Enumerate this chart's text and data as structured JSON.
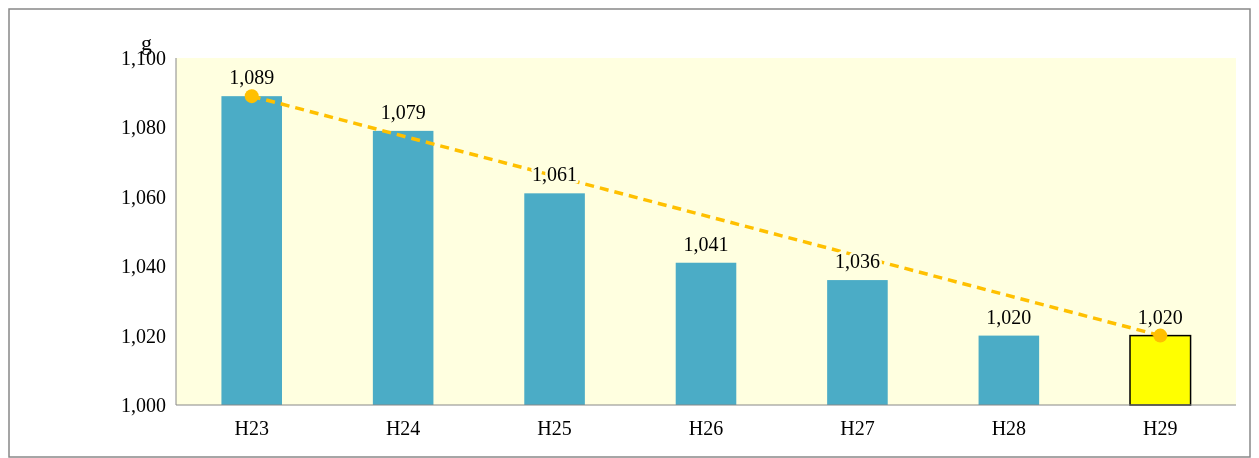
{
  "chart_data": {
    "type": "bar",
    "ylabel": "g",
    "categories": [
      "H23",
      "H24",
      "H25",
      "H26",
      "H27",
      "H28",
      "H29"
    ],
    "ylim": [
      1000,
      1100
    ],
    "yticks": [
      {
        "value": 1000,
        "label": "1,000"
      },
      {
        "value": 1020,
        "label": "1,020"
      },
      {
        "value": 1040,
        "label": "1,040"
      },
      {
        "value": 1060,
        "label": "1,060"
      },
      {
        "value": 1080,
        "label": "1,080"
      },
      {
        "value": 1100,
        "label": "1,100"
      }
    ],
    "grid": false,
    "series": [
      {
        "values": [
          1089,
          1079,
          1061,
          1041,
          1036,
          1020,
          1020
        ],
        "colors": [
          "#4bacc6",
          "#4bacc6",
          "#4bacc6",
          "#4bacc6",
          "#4bacc6",
          "#4bacc6",
          "#ffff00"
        ],
        "value_labels": [
          "1,089",
          "1,079",
          "1,061",
          "1,041",
          "1,036",
          "1,020",
          "1,020"
        ]
      },
      {
        "type": "line",
        "x": [
          "H23",
          "H29"
        ],
        "values": [
          1089,
          1020
        ],
        "color": "#ffc000",
        "line_style": "dashed",
        "marker": "circle"
      }
    ]
  }
}
